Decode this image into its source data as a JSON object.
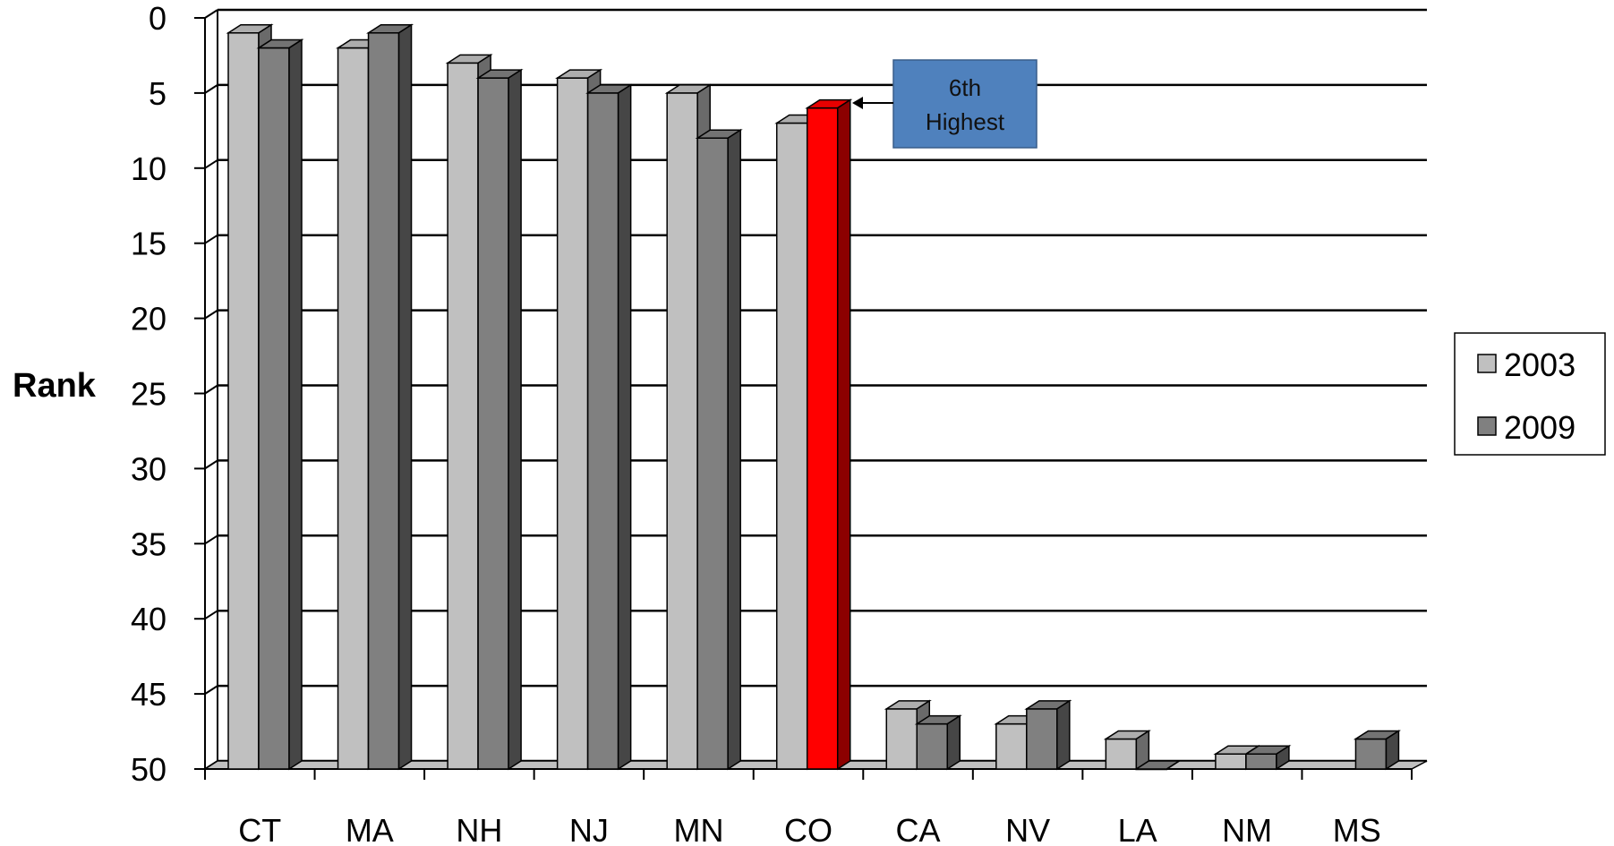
{
  "chart_data": {
    "type": "bar",
    "ylabel": "Rank",
    "ylim": [
      0,
      50
    ],
    "y_inverted": true,
    "y_ticks": [
      0,
      5,
      10,
      15,
      20,
      25,
      30,
      35,
      40,
      45,
      50
    ],
    "grid": true,
    "categories": [
      "CT",
      "MA",
      "NH",
      "NJ",
      "MN",
      "CO",
      "CA",
      "NV",
      "LA",
      "NM",
      "MS"
    ],
    "series": [
      {
        "name": "2003",
        "values": [
          1,
          2,
          3,
          4,
          5,
          7,
          46,
          47,
          48,
          49,
          null
        ],
        "color": "#c0c0c0"
      },
      {
        "name": "2009",
        "values": [
          2,
          1,
          4,
          5,
          8,
          6,
          47,
          46,
          50,
          49,
          48
        ],
        "color": "#808080"
      }
    ],
    "highlight": {
      "category": "CO",
      "series": "2009",
      "color": "#ff0000"
    },
    "annotation": {
      "text_line1": "6th",
      "text_line2": "Highest",
      "target_category": "CO",
      "color": "#4f81bd"
    },
    "legend": {
      "position": "right",
      "entries": [
        "2003",
        "2009"
      ]
    }
  }
}
